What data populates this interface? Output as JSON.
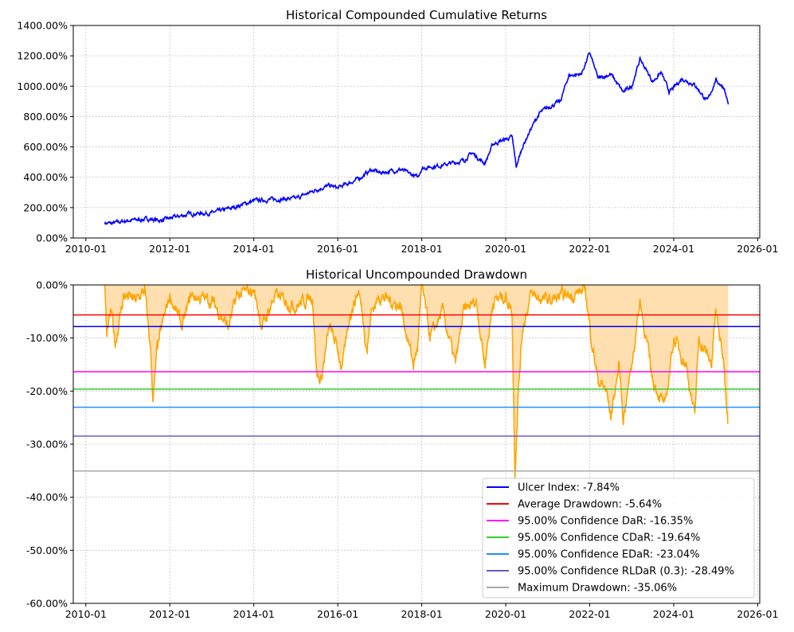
{
  "chart_data": [
    {
      "type": "line",
      "title": "Historical Compounded Cumulative Returns",
      "xlabel": "",
      "ylabel": "",
      "xlim": [
        2009.7,
        2026.05
      ],
      "ylim": [
        0,
        1400
      ],
      "grid": true,
      "x_ticks": [
        "2010-01",
        "2012-01",
        "2014-01",
        "2016-01",
        "2018-01",
        "2020-01",
        "2022-01",
        "2024-01",
        "2026-01"
      ],
      "y_ticks": [
        "0.00%",
        "200.00%",
        "400.00%",
        "600.00%",
        "800.00%",
        "1000.00%",
        "1200.00%",
        "1400.00%"
      ],
      "series": [
        {
          "name": "Cumulative Returns",
          "color": "#0000ff",
          "points": [
            [
              2010.45,
              100
            ],
            [
              2010.6,
              95
            ],
            [
              2011.0,
              115
            ],
            [
              2011.5,
              125
            ],
            [
              2011.8,
              115
            ],
            [
              2012.0,
              130
            ],
            [
              2012.5,
              160
            ],
            [
              2013.0,
              165
            ],
            [
              2013.5,
              200
            ],
            [
              2014.0,
              245
            ],
            [
              2014.5,
              255
            ],
            [
              2015.0,
              260
            ],
            [
              2015.5,
              320
            ],
            [
              2015.8,
              345
            ],
            [
              2016.0,
              330
            ],
            [
              2016.5,
              390
            ],
            [
              2016.8,
              450
            ],
            [
              2017.0,
              430
            ],
            [
              2017.5,
              450
            ],
            [
              2017.9,
              400
            ],
            [
              2018.0,
              460
            ],
            [
              2018.5,
              480
            ],
            [
              2019.0,
              510
            ],
            [
              2019.2,
              560
            ],
            [
              2019.5,
              490
            ],
            [
              2019.7,
              620
            ],
            [
              2020.0,
              650
            ],
            [
              2020.15,
              665
            ],
            [
              2020.25,
              470
            ],
            [
              2020.4,
              600
            ],
            [
              2020.6,
              720
            ],
            [
              2020.8,
              820
            ],
            [
              2021.0,
              860
            ],
            [
              2021.3,
              900
            ],
            [
              2021.5,
              1070
            ],
            [
              2021.8,
              1080
            ],
            [
              2022.0,
              1220
            ],
            [
              2022.2,
              1050
            ],
            [
              2022.5,
              1080
            ],
            [
              2022.8,
              960
            ],
            [
              2023.0,
              1000
            ],
            [
              2023.2,
              1180
            ],
            [
              2023.5,
              1030
            ],
            [
              2023.7,
              1090
            ],
            [
              2023.9,
              960
            ],
            [
              2024.2,
              1050
            ],
            [
              2024.5,
              1010
            ],
            [
              2024.8,
              900
            ],
            [
              2025.0,
              1040
            ],
            [
              2025.2,
              990
            ],
            [
              2025.3,
              880
            ]
          ]
        }
      ]
    },
    {
      "type": "area",
      "title": "Historical Uncompounded Drawdown",
      "xlabel": "",
      "ylabel": "",
      "xlim": [
        2009.7,
        2026.05
      ],
      "ylim": [
        -60,
        0
      ],
      "grid": true,
      "legend_position": "lower-right",
      "x_ticks": [
        "2010-01",
        "2012-01",
        "2014-01",
        "2016-01",
        "2018-01",
        "2020-01",
        "2022-01",
        "2024-01",
        "2026-01"
      ],
      "y_ticks": [
        "0.00%",
        "-10.00%",
        "-20.00%",
        "-30.00%",
        "-40.00%",
        "-50.00%",
        "-60.00%"
      ],
      "series": [
        {
          "name": "Drawdown",
          "color": "#ffa500",
          "fill": "#ffdfb0",
          "points": [
            [
              2010.45,
              0
            ],
            [
              2010.5,
              -10
            ],
            [
              2010.6,
              -5
            ],
            [
              2010.7,
              -11
            ],
            [
              2010.9,
              -2
            ],
            [
              2011.2,
              -3
            ],
            [
              2011.4,
              -1
            ],
            [
              2011.55,
              -13
            ],
            [
              2011.6,
              -22
            ],
            [
              2011.7,
              -12
            ],
            [
              2011.9,
              -5
            ],
            [
              2012.0,
              -2
            ],
            [
              2012.3,
              -8
            ],
            [
              2012.5,
              -2
            ],
            [
              2013.0,
              -3
            ],
            [
              2013.4,
              -8
            ],
            [
              2013.6,
              -2
            ],
            [
              2014.0,
              -1
            ],
            [
              2014.2,
              -8
            ],
            [
              2014.5,
              -2
            ],
            [
              2015.0,
              -4
            ],
            [
              2015.4,
              -2
            ],
            [
              2015.5,
              -17
            ],
            [
              2015.6,
              -18
            ],
            [
              2015.8,
              -8
            ],
            [
              2016.0,
              -12
            ],
            [
              2016.1,
              -16
            ],
            [
              2016.3,
              -5
            ],
            [
              2016.5,
              -1
            ],
            [
              2016.7,
              -12
            ],
            [
              2016.8,
              -5
            ],
            [
              2017.0,
              -2
            ],
            [
              2017.5,
              -4
            ],
            [
              2017.8,
              -15
            ],
            [
              2017.9,
              -12
            ],
            [
              2018.0,
              0
            ],
            [
              2018.2,
              -10
            ],
            [
              2018.5,
              -5
            ],
            [
              2018.8,
              -15
            ],
            [
              2019.0,
              -5
            ],
            [
              2019.3,
              -3
            ],
            [
              2019.5,
              -15
            ],
            [
              2019.7,
              -3
            ],
            [
              2020.0,
              -2
            ],
            [
              2020.15,
              -5
            ],
            [
              2020.22,
              -35
            ],
            [
              2020.3,
              -20
            ],
            [
              2020.4,
              -8
            ],
            [
              2020.6,
              -2
            ],
            [
              2021.0,
              -3
            ],
            [
              2021.5,
              -2
            ],
            [
              2021.9,
              -1
            ],
            [
              2022.0,
              -8
            ],
            [
              2022.2,
              -18
            ],
            [
              2022.4,
              -20
            ],
            [
              2022.5,
              -25
            ],
            [
              2022.7,
              -15
            ],
            [
              2022.8,
              -25
            ],
            [
              2023.0,
              -15
            ],
            [
              2023.2,
              -3
            ],
            [
              2023.5,
              -18
            ],
            [
              2023.8,
              -23
            ],
            [
              2024.0,
              -10
            ],
            [
              2024.3,
              -15
            ],
            [
              2024.5,
              -25
            ],
            [
              2024.6,
              -10
            ],
            [
              2024.9,
              -15
            ],
            [
              2025.0,
              -5
            ],
            [
              2025.2,
              -15
            ],
            [
              2025.3,
              -26
            ]
          ]
        }
      ],
      "hlines": [
        {
          "label": "Ulcer Index: -7.84%",
          "value": -7.84,
          "color": "#0000ff"
        },
        {
          "label": "Average Drawdown: -5.64%",
          "value": -5.64,
          "color": "#ff0000"
        },
        {
          "label": "95.00% Confidence DaR: -16.35%",
          "value": -16.35,
          "color": "#ff00ff"
        },
        {
          "label": "95.00% Confidence CDaR: -19.64%",
          "value": -19.64,
          "color": "#32cd32"
        },
        {
          "label": "95.00% Confidence EDaR: -23.04%",
          "value": -23.04,
          "color": "#1e90ff"
        },
        {
          "label": "95.00% Confidence RLDaR (0.3): -28.49%",
          "value": -28.49,
          "color": "#6a5acd"
        },
        {
          "label": "Maximum Drawdown: -35.06%",
          "value": -35.06,
          "color": "#a9a9a9"
        }
      ]
    }
  ]
}
